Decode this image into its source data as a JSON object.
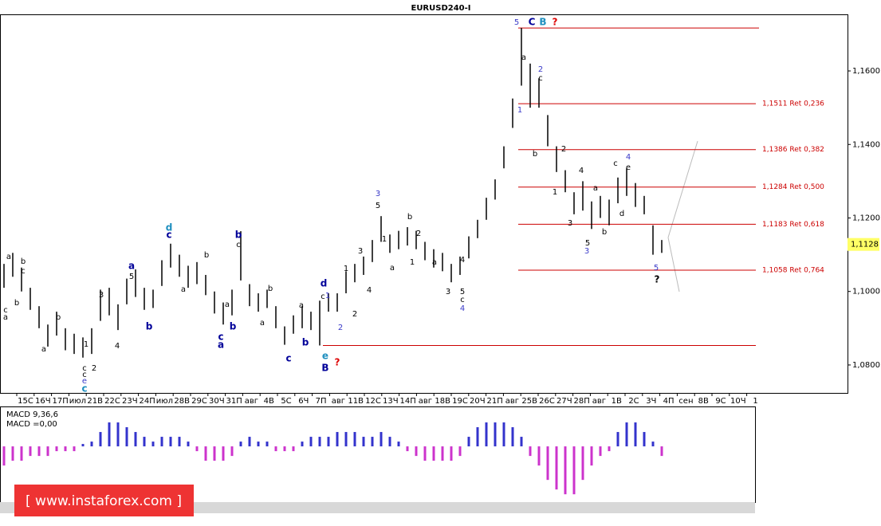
{
  "chart_data": [
    {
      "type": "ohlc",
      "title": "EURUSD240-I",
      "x_labels": [
        "15С",
        "16Ч",
        "17П",
        "июл",
        "21В",
        "22С",
        "23Ч",
        "24П",
        "июл",
        "28В",
        "29С",
        "30Ч",
        "31П",
        "авг",
        "4В",
        "5С",
        "6Ч",
        "7П",
        "авг",
        "11В",
        "12С",
        "13Ч",
        "14П",
        "авг",
        "18В",
        "19С",
        "20Ч",
        "21П",
        "авг",
        "25В",
        "26С",
        "27Ч",
        "28П",
        "авг",
        "1В",
        "2С",
        "3Ч",
        "4П",
        "сен",
        "8В",
        "9С",
        "10Ч",
        "1"
      ],
      "high": [
        1.1075,
        1.1105,
        1.1065,
        1.101,
        1.096,
        1.091,
        1.0945,
        1.09,
        1.0885,
        1.0875,
        1.09,
        1.1005,
        1.101,
        1.0965,
        1.1035,
        1.106,
        1.101,
        1.1005,
        1.1085,
        1.113,
        1.11,
        1.107,
        1.108,
        1.1045,
        1.1,
        1.097,
        1.1005,
        1.1164,
        1.102,
        1.0995,
        1.1005,
        1.096,
        1.0905,
        1.0935,
        1.096,
        1.0945,
        1.0975,
        1.0995,
        1.0995,
        1.1055,
        1.1075,
        1.1095,
        1.114,
        1.1205,
        1.1155,
        1.1165,
        1.1175,
        1.1165,
        1.1135,
        1.1115,
        1.1105,
        1.1075,
        1.1095,
        1.115,
        1.1195,
        1.1255,
        1.1305,
        1.1395,
        1.1525,
        1.1717,
        1.162,
        1.158,
        1.148,
        1.1395,
        1.133,
        1.127,
        1.13,
        1.1245,
        1.126,
        1.125,
        1.131,
        1.1335,
        1.1295,
        1.126,
        1.118,
        1.114
      ],
      "low": [
        1.101,
        1.104,
        1.1,
        1.095,
        1.09,
        1.085,
        1.088,
        1.084,
        1.083,
        1.082,
        1.083,
        1.092,
        1.0935,
        1.0895,
        1.0965,
        1.0985,
        1.095,
        1.0955,
        1.1015,
        1.1065,
        1.104,
        1.101,
        1.102,
        1.099,
        1.094,
        1.091,
        1.0935,
        1.103,
        1.096,
        1.0945,
        1.0955,
        1.09,
        1.0855,
        1.0885,
        1.09,
        1.0895,
        1.0853,
        1.0945,
        1.0945,
        1.0995,
        1.1025,
        1.1045,
        1.108,
        1.1135,
        1.1105,
        1.1115,
        1.1125,
        1.1115,
        1.1085,
        1.1065,
        1.1055,
        1.1025,
        1.1045,
        1.109,
        1.1145,
        1.1195,
        1.125,
        1.1335,
        1.1445,
        1.156,
        1.15,
        1.15,
        1.1395,
        1.1325,
        1.127,
        1.121,
        1.122,
        1.117,
        1.12,
        1.118,
        1.124,
        1.126,
        1.123,
        1.121,
        1.11,
        1.1105
      ],
      "color": "#000000",
      "ylim": [
        1.0724,
        1.1754
      ],
      "yticks": [
        {
          "value": 1.08,
          "label": "1,0800"
        },
        {
          "value": 1.1,
          "label": "1,1000"
        },
        {
          "value": 1.12,
          "label": "1,1200"
        },
        {
          "value": 1.14,
          "label": "1,1400"
        },
        {
          "value": 1.16,
          "label": "1,1600"
        }
      ],
      "last_price": {
        "value": 1.1128,
        "label": "1,1128"
      },
      "hline_color": "#cc0000",
      "hlines": [
        {
          "value": 1.1717
        },
        {
          "value": 1.1511,
          "label": "1,1511 Ret 0,236"
        },
        {
          "value": 1.1386,
          "label": "1,1386 Ret 0,382"
        },
        {
          "value": 1.1284,
          "label": "1,1284 Ret 0,500"
        },
        {
          "value": 1.1183,
          "label": "1,1183 Ret 0,618"
        },
        {
          "value": 1.1058,
          "label": "1,1058 Ret 0,764"
        },
        {
          "value": 1.0853
        }
      ],
      "annotation_colors": {
        "black": "#000000",
        "blue": "#3a3ac8",
        "navy": "#000099",
        "teal": "#1f8fbf",
        "red": "#dd0000"
      },
      "annotations": [
        {
          "text": "5",
          "color": "blue"
        },
        {
          "text": "C",
          "color": "navy"
        },
        {
          "text": "B",
          "color": "teal"
        },
        {
          "text": "?",
          "color": "red"
        },
        {
          "text": "a",
          "color": "black"
        },
        {
          "text": "2",
          "color": "blue"
        },
        {
          "text": "c",
          "color": "black"
        },
        {
          "text": "1",
          "color": "blue"
        },
        {
          "text": "b",
          "color": "black"
        },
        {
          "text": "2",
          "color": "black"
        },
        {
          "text": "1",
          "color": "black"
        },
        {
          "text": "4",
          "color": "blue"
        },
        {
          "text": "c",
          "color": "black"
        },
        {
          "text": "e",
          "color": "black"
        },
        {
          "text": "4",
          "color": "black"
        },
        {
          "text": "a",
          "color": "black"
        },
        {
          "text": "d",
          "color": "black"
        },
        {
          "text": "3",
          "color": "black"
        },
        {
          "text": "b",
          "color": "black"
        },
        {
          "text": "5",
          "color": "black"
        },
        {
          "text": "3",
          "color": "blue"
        },
        {
          "text": "5",
          "color": "blue"
        },
        {
          "text": "?",
          "color": "black"
        },
        {
          "text": "a",
          "color": "black"
        },
        {
          "text": "b",
          "color": "black"
        },
        {
          "text": "c",
          "color": "black"
        },
        {
          "text": "b",
          "color": "black"
        },
        {
          "text": "c",
          "color": "black"
        },
        {
          "text": "a",
          "color": "black"
        },
        {
          "text": "b",
          "color": "black"
        },
        {
          "text": "a",
          "color": "black"
        },
        {
          "text": "1",
          "color": "black"
        },
        {
          "text": "c",
          "color": "black"
        },
        {
          "text": "c",
          "color": "black"
        },
        {
          "text": "e",
          "color": "blue"
        },
        {
          "text": "c",
          "color": "teal"
        },
        {
          "text": "2",
          "color": "black"
        },
        {
          "text": "3",
          "color": "black"
        },
        {
          "text": "4",
          "color": "black"
        },
        {
          "text": "a",
          "color": "navy"
        },
        {
          "text": "5",
          "color": "black"
        },
        {
          "text": "b",
          "color": "navy"
        },
        {
          "text": "d",
          "color": "teal"
        },
        {
          "text": "c",
          "color": "navy"
        },
        {
          "text": "b",
          "color": "black"
        },
        {
          "text": "a",
          "color": "black"
        },
        {
          "text": "b",
          "color": "navy"
        },
        {
          "text": "c",
          "color": "black"
        },
        {
          "text": "a",
          "color": "black"
        },
        {
          "text": "c",
          "color": "navy"
        },
        {
          "text": "a",
          "color": "navy"
        },
        {
          "text": "b",
          "color": "navy"
        },
        {
          "text": "b",
          "color": "black"
        },
        {
          "text": "a",
          "color": "black"
        },
        {
          "text": "c",
          "color": "navy"
        },
        {
          "text": "a",
          "color": "black"
        },
        {
          "text": "b",
          "color": "navy"
        },
        {
          "text": "d",
          "color": "navy"
        },
        {
          "text": "c",
          "color": "black"
        },
        {
          "text": "1",
          "color": "blue"
        },
        {
          "text": "e",
          "color": "teal"
        },
        {
          "text": "B",
          "color": "navy"
        },
        {
          "text": "?",
          "color": "red"
        },
        {
          "text": "2",
          "color": "blue"
        },
        {
          "text": "2",
          "color": "black"
        },
        {
          "text": "1",
          "color": "black"
        },
        {
          "text": "3",
          "color": "black"
        },
        {
          "text": "4",
          "color": "black"
        },
        {
          "text": "3",
          "color": "blue"
        },
        {
          "text": "5",
          "color": "black"
        },
        {
          "text": "1",
          "color": "black"
        },
        {
          "text": "a",
          "color": "black"
        },
        {
          "text": "b",
          "color": "black"
        },
        {
          "text": "2",
          "color": "black"
        },
        {
          "text": "1",
          "color": "black"
        },
        {
          "text": "a",
          "color": "black"
        },
        {
          "text": "3",
          "color": "black"
        },
        {
          "text": "5",
          "color": "black"
        },
        {
          "text": "4",
          "color": "black"
        },
        {
          "text": "c",
          "color": "black"
        },
        {
          "text": "4",
          "color": "blue"
        }
      ]
    },
    {
      "type": "bar",
      "title": "MACD 9,36,6",
      "subtitle": "MACD =0,00",
      "up_color": "#3333cc",
      "down_color": "#cc33cc",
      "ylim": [
        -0.0113,
        0.008
      ],
      "values": [
        -0.004,
        -0.003,
        -0.003,
        -0.002,
        -0.002,
        -0.002,
        -0.001,
        -0.001,
        -0.001,
        0.0005,
        0.001,
        0.003,
        0.005,
        0.005,
        0.004,
        0.003,
        0.002,
        0.001,
        0.002,
        0.002,
        0.002,
        0.001,
        -0.001,
        -0.003,
        -0.003,
        -0.003,
        -0.002,
        0.001,
        0.002,
        0.001,
        0.001,
        -0.001,
        -0.001,
        -0.001,
        0.001,
        0.002,
        0.002,
        0.002,
        0.003,
        0.003,
        0.003,
        0.002,
        0.002,
        0.003,
        0.002,
        0.001,
        -0.001,
        -0.002,
        -0.003,
        -0.003,
        -0.003,
        -0.003,
        -0.002,
        0.002,
        0.004,
        0.005,
        0.005,
        0.005,
        0.004,
        0.002,
        -0.002,
        -0.004,
        -0.007,
        -0.009,
        -0.01,
        -0.01,
        -0.007,
        -0.004,
        -0.002,
        -0.001,
        0.003,
        0.005,
        0.005,
        0.003,
        0.001,
        -0.002
      ]
    }
  ],
  "watermark": "[ www.instaforex.com ]"
}
